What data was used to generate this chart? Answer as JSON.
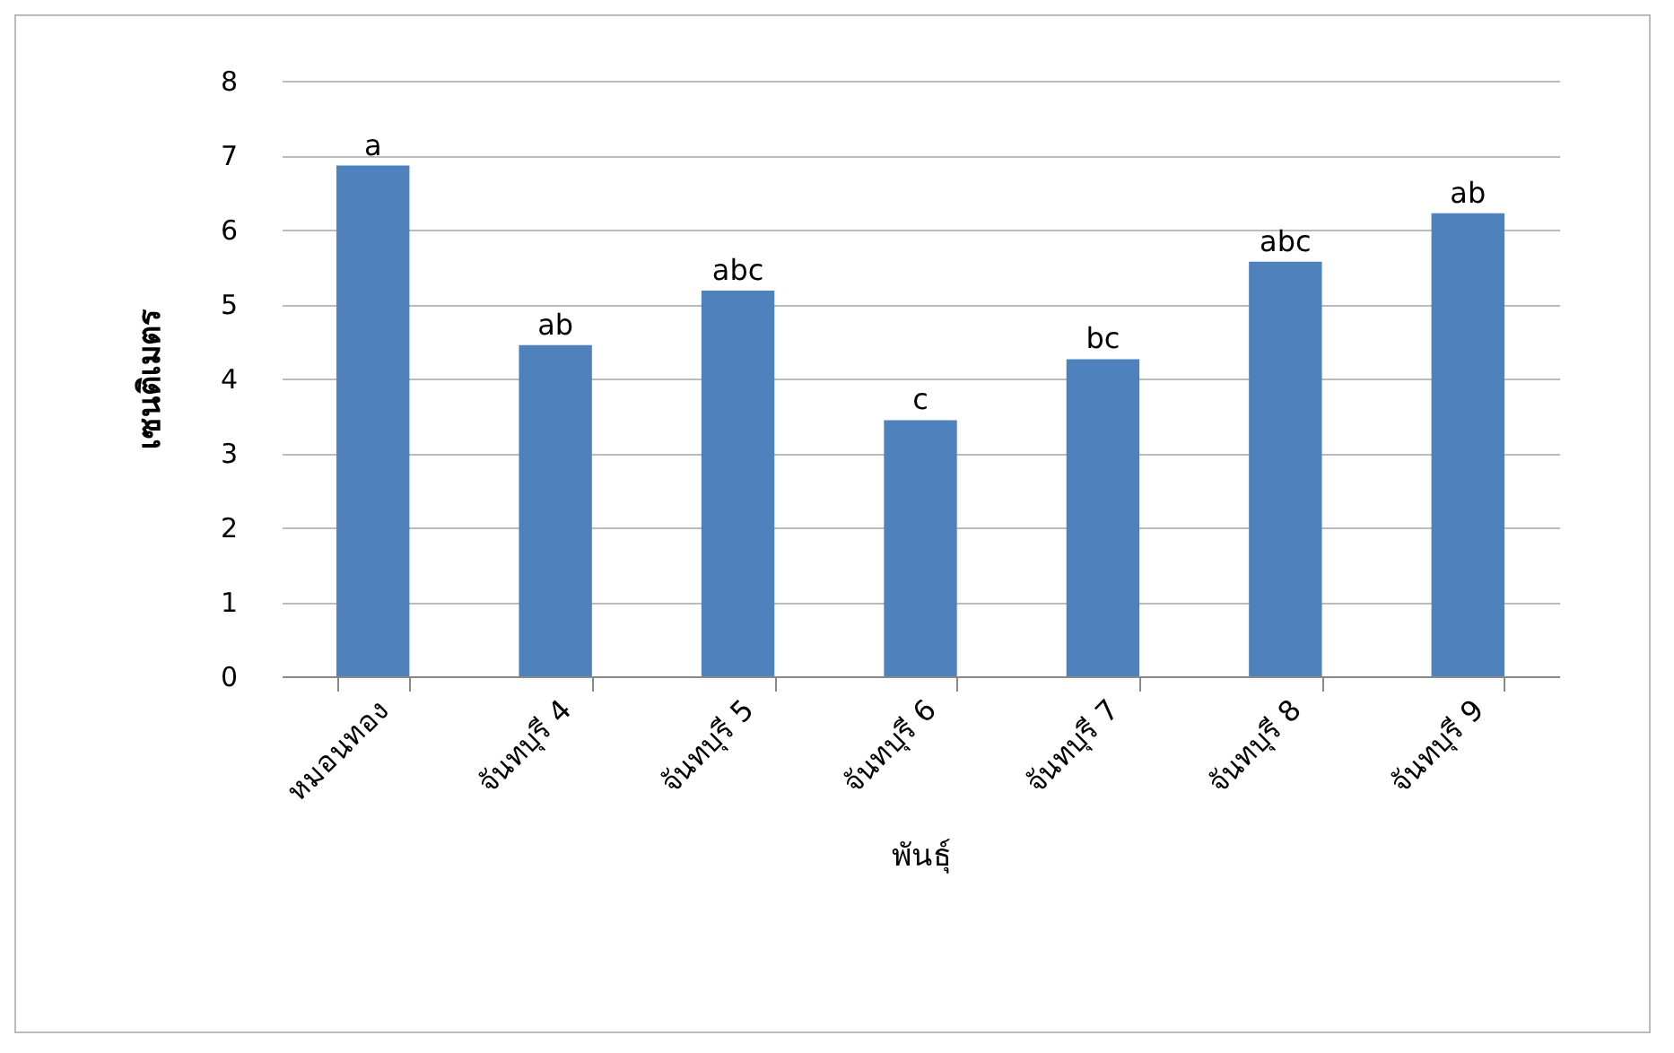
{
  "chart_data": {
    "type": "bar",
    "xlabel": "พันธุ์",
    "ylabel": "เซนติเมตร",
    "categories": [
      "หมอนทอง",
      "จันทบุรี 4",
      "จันทบุรี 5",
      "จันทบุรี 6",
      "จันทบุรี 7",
      "จันทบุรี 8",
      "จันทบุรี 9"
    ],
    "values": [
      6.86,
      4.45,
      5.18,
      3.44,
      4.26,
      5.57,
      6.22
    ],
    "color": "#4f81bd",
    "ylim": [
      0,
      8
    ],
    "yticks": [
      0,
      1,
      2,
      3,
      4,
      5,
      6,
      7,
      8
    ],
    "grid": "y",
    "annotations": [
      {
        "text": "a",
        "x": "หมอนทอง",
        "y": 6.86
      },
      {
        "text": "ab",
        "x": "จันทบุรี 4",
        "y": 4.45
      },
      {
        "text": "abc",
        "x": "จันทบุรี 5",
        "y": 5.18
      },
      {
        "text": "c",
        "x": "จันทบุรี 6",
        "y": 3.44
      },
      {
        "text": "bc",
        "x": "จันทบุรี 7",
        "y": 4.26
      },
      {
        "text": "abc",
        "x": "จันทบุรี 8",
        "y": 5.57
      },
      {
        "text": "ab",
        "x": "จันทบุรี 9",
        "y": 6.22
      }
    ]
  }
}
